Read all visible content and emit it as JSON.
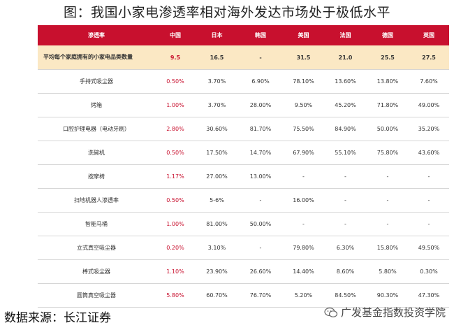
{
  "title": "图：我国小家电渗透率相对海外发达市场处于极低水平",
  "table": {
    "headers": [
      "渗透率",
      "中国",
      "日本",
      "韩国",
      "美国",
      "法国",
      "德国",
      "英国"
    ],
    "rows": [
      [
        "平均每个家庭拥有的小家电品类数量",
        "9.5",
        "16.5",
        "-",
        "31.5",
        "21.0",
        "25.5",
        "27.5"
      ],
      [
        "手持式吸尘器",
        "0.50%",
        "3.70%",
        "6.90%",
        "78.10%",
        "13.60%",
        "13.80%",
        "7.60%"
      ],
      [
        "烤箱",
        "1.00%",
        "3.70%",
        "28.00%",
        "9.50%",
        "45.20%",
        "71.80%",
        "49.00%"
      ],
      [
        "口腔护理电器（电动牙刷）",
        "2.80%",
        "30.60%",
        "81.70%",
        "75.50%",
        "84.90%",
        "50.00%",
        "35.20%"
      ],
      [
        "洗碗机",
        "0.50%",
        "17.50%",
        "14.70%",
        "67.90%",
        "55.10%",
        "75.80%",
        "43.60%"
      ],
      [
        "按摩椅",
        "1.17%",
        "27.00%",
        "13.00%",
        "-",
        "-",
        "-",
        "-"
      ],
      [
        "扫地机器人渗透率",
        "0.50%",
        "5-6%",
        "-",
        "16.00%",
        "-",
        "-",
        "-"
      ],
      [
        "智能马桶",
        "1.00%",
        "81.00%",
        "50.00%",
        "-",
        "-",
        "-",
        "-"
      ],
      [
        "立式真空吸尘器",
        "0.20%",
        "3.10%",
        "-",
        "79.80%",
        "6.30%",
        "15.80%",
        "49.50%"
      ],
      [
        "棒式吸尘器",
        "1.10%",
        "23.90%",
        "26.60%",
        "14.40%",
        "8.60%",
        "5.80%",
        "0.30%"
      ],
      [
        "圆筒真空吸尘器",
        "5.80%",
        "60.70%",
        "76.70%",
        "5.20%",
        "84.50%",
        "90.30%",
        "47.30%"
      ]
    ]
  },
  "source": "数据来源：长江证券",
  "watermark": "广发基金指数投资学院",
  "colors": {
    "header_bg": "#c8102e",
    "highlight_row_bg": "#fbe8c4",
    "china_text": "#c8102e"
  }
}
